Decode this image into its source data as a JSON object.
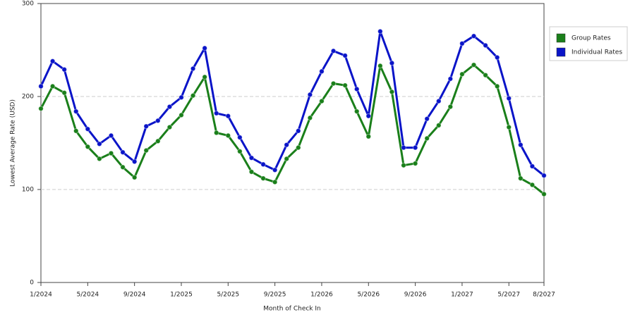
{
  "chart_data": {
    "type": "line",
    "y_label": "Lowest Average Rate (USD)",
    "x_label": "Month of Check In",
    "categories": [
      "1/2024",
      null,
      null,
      null,
      "5/2024",
      null,
      null,
      null,
      "9/2024",
      null,
      null,
      null,
      "1/2025",
      null,
      null,
      null,
      "5/2025",
      null,
      null,
      null,
      "9/2025",
      null,
      null,
      null,
      "1/2026",
      null,
      null,
      null,
      "5/2026",
      null,
      null,
      null,
      "9/2026",
      null,
      null,
      null,
      "1/2027",
      null,
      null,
      null,
      "5/2027",
      null,
      null,
      "8/2027"
    ],
    "series": [
      {
        "name": "Group Rates",
        "color": "#1a7f1a",
        "values": [
          187,
          211,
          204,
          163,
          146,
          133,
          139,
          124,
          113,
          142,
          152,
          167,
          180,
          201,
          221,
          161,
          158,
          141,
          119,
          112,
          108,
          133,
          145,
          177,
          195,
          214,
          212,
          184,
          157,
          233,
          205,
          126,
          128,
          155,
          169,
          189,
          224,
          234,
          223,
          211,
          167,
          112,
          105,
          95
        ]
      },
      {
        "name": "Individual Rates",
        "color": "#0a14c8",
        "values": [
          211,
          238,
          229,
          184,
          165,
          149,
          158,
          140,
          130,
          168,
          174,
          189,
          199,
          230,
          252,
          182,
          179,
          156,
          134,
          127,
          121,
          148,
          163,
          202,
          227,
          249,
          244,
          208,
          179,
          270,
          236,
          145,
          145,
          176,
          195,
          219,
          257,
          265,
          255,
          242,
          198,
          148,
          125,
          115
        ]
      }
    ],
    "ylim": [
      0,
      300
    ],
    "yticks": [
      0,
      100,
      200,
      300
    ],
    "grid": true,
    "legend": "right"
  }
}
